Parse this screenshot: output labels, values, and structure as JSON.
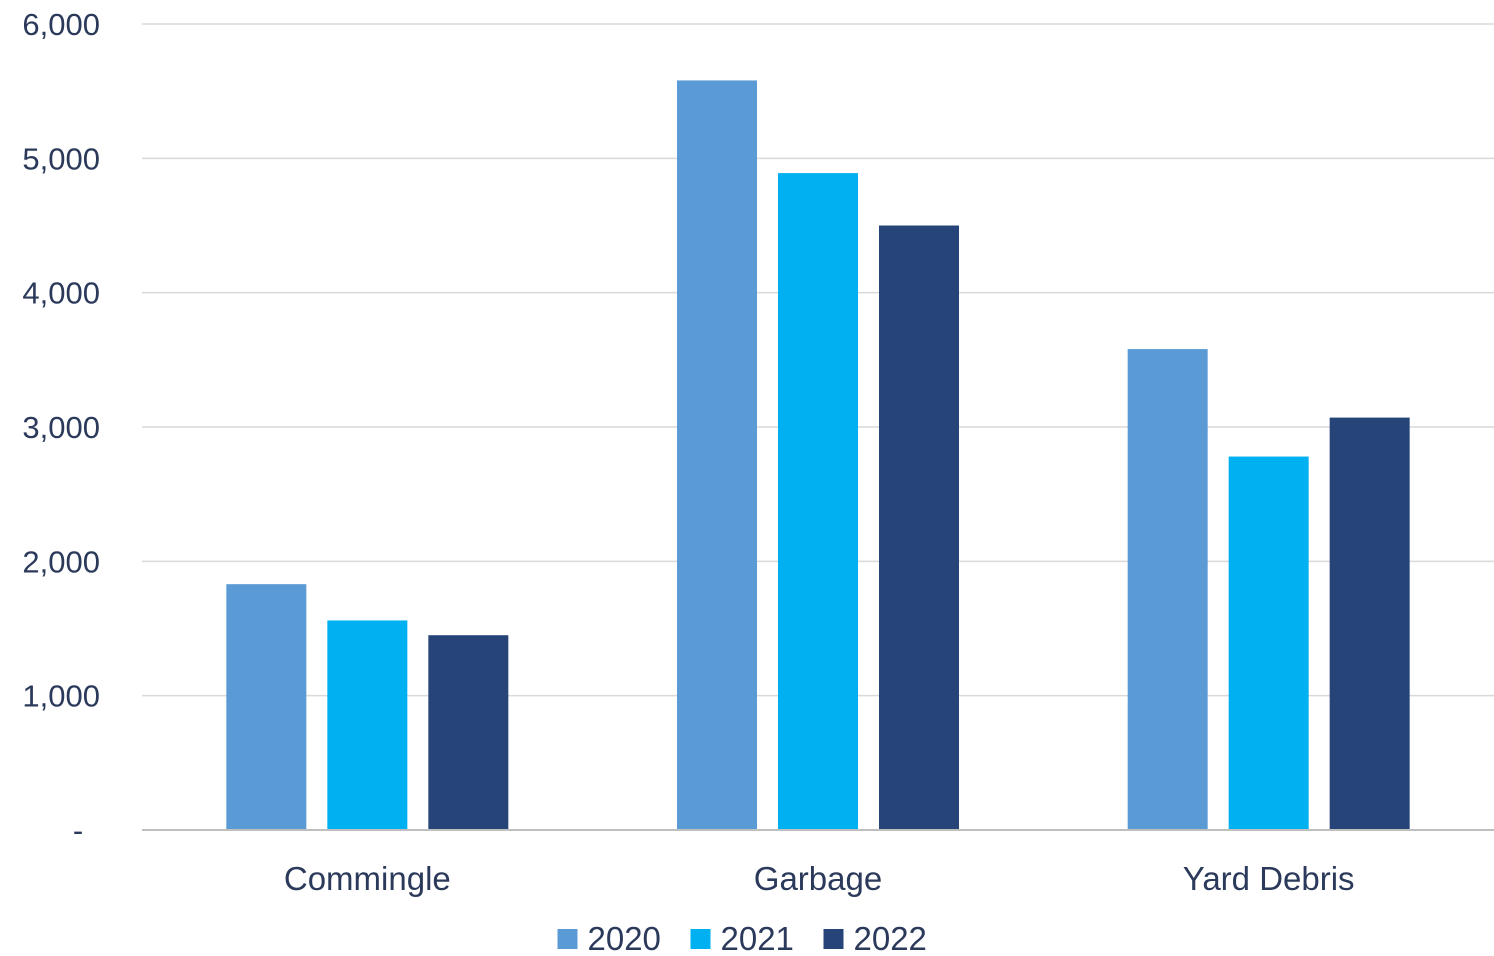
{
  "chart_data": {
    "type": "bar",
    "title": "",
    "xlabel": "",
    "ylabel": "",
    "categories": [
      "Commingle",
      "Garbage",
      "Yard Debris"
    ],
    "series": [
      {
        "name": "2020",
        "color": "#5b9bd5",
        "values": [
          1830,
          5580,
          3580
        ]
      },
      {
        "name": "2021",
        "color": "#00b0f0",
        "values": [
          1560,
          4890,
          2780
        ]
      },
      {
        "name": "2022",
        "color": "#264478",
        "values": [
          1450,
          4500,
          3070
        ]
      }
    ],
    "ylim": [
      0,
      6000
    ],
    "y_ticks": [
      {
        "value": 0,
        "label": "-"
      },
      {
        "value": 1000,
        "label": "1,000"
      },
      {
        "value": 2000,
        "label": "2,000"
      },
      {
        "value": 3000,
        "label": "3,000"
      },
      {
        "value": 4000,
        "label": "4,000"
      },
      {
        "value": 5000,
        "label": "5,000"
      },
      {
        "value": 6000,
        "label": "6,000"
      }
    ],
    "grid": true,
    "legend_position": "bottom-center"
  }
}
